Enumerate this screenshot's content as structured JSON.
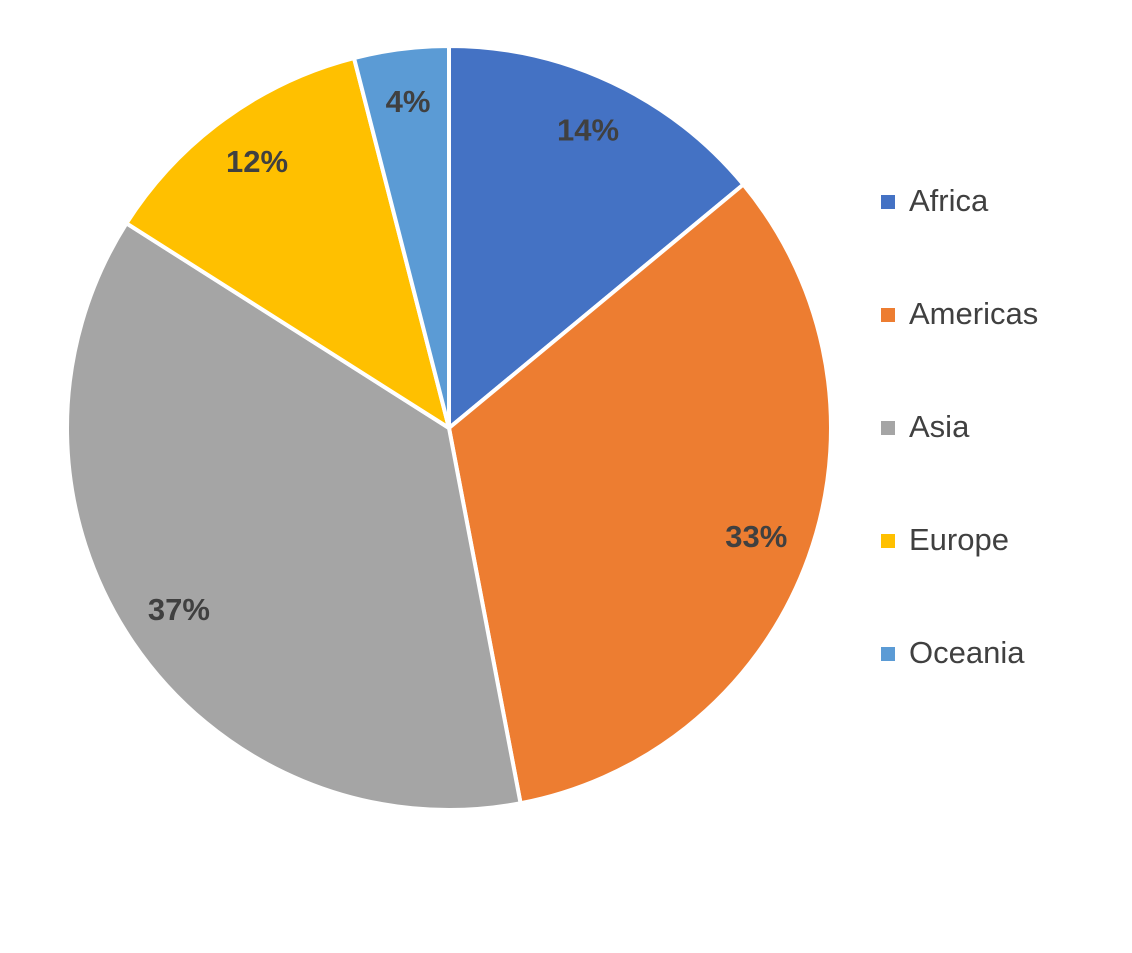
{
  "chart_data": {
    "type": "pie",
    "categories": [
      "Africa",
      "Americas",
      "Asia",
      "Europe",
      "Oceania"
    ],
    "values": [
      14,
      33,
      37,
      12,
      4
    ],
    "value_labels": [
      "14%",
      "33%",
      "37%",
      "12%",
      "4%"
    ],
    "colors": [
      "#4472c4",
      "#ed7d31",
      "#a5a5a5",
      "#ffc000",
      "#5b9bd5"
    ],
    "legend": "right"
  }
}
